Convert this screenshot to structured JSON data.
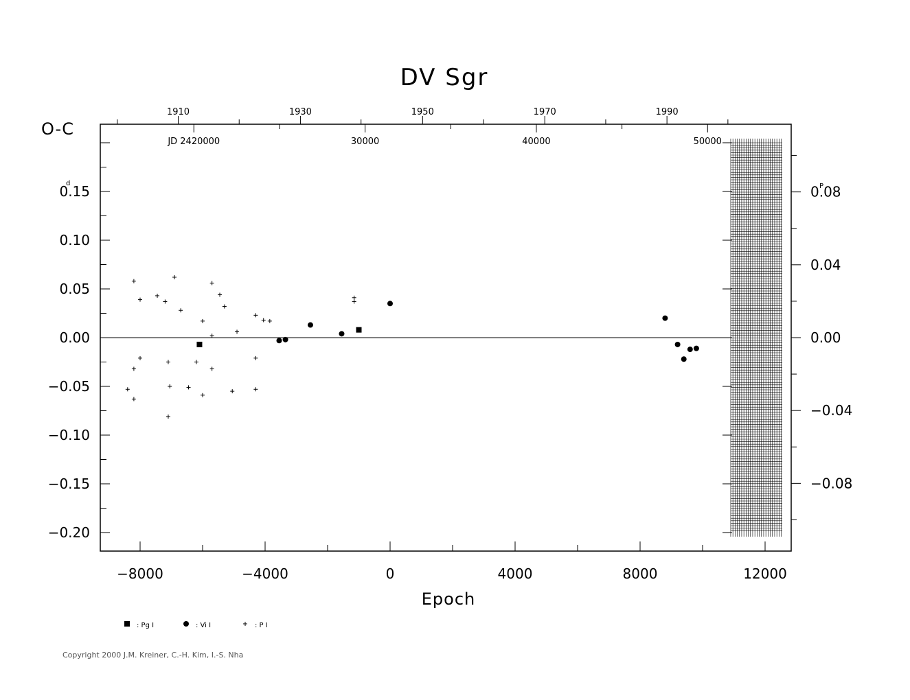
{
  "copyright": "Copyright 2000 J.M. Kreiner, C.-H. Kim, I.-S. Nha",
  "chart_data": {
    "type": "scatter",
    "title": "DV Sgr",
    "xlabel": "Epoch",
    "ylabel": "O-C",
    "y_unit_left": "d",
    "y_unit_right": "P",
    "xlim": [
      -9200,
      12800
    ],
    "ylim": [
      -0.22,
      0.22
    ],
    "x_ticks": [
      -8000,
      -4000,
      0,
      4000,
      8000,
      12000
    ],
    "x_tick_labels": [
      "−8000",
      "−4000",
      "0",
      "4000",
      "8000",
      "12000"
    ],
    "y_ticks_left": [
      -0.2,
      -0.15,
      -0.1,
      -0.05,
      0.0,
      0.05,
      0.1,
      0.15
    ],
    "y_tick_labels_left": [
      "−0.20",
      "−0.15",
      "−0.10",
      "−0.05",
      "0.00",
      "0.05",
      "0.10",
      "0.15"
    ],
    "right_axis_factor": 0.535,
    "y_ticks_right": [
      -0.08,
      -0.04,
      0.0,
      0.04,
      0.08
    ],
    "y_tick_labels_right": [
      "−0.08",
      "−0.04",
      "0.00",
      "0.04",
      "0.08"
    ],
    "top_year_ticks": [
      1910,
      1930,
      1950,
      1970,
      1990
    ],
    "top_year_epochs": [
      -6780,
      -2870,
      1040,
      4950,
      8860
    ],
    "top_year_minor_epochs": [
      -8730,
      -4830,
      -930,
      2990,
      6900,
      10810
    ],
    "jd_ticks": [
      20000,
      30000,
      40000,
      50000
    ],
    "jd_tick_labels": [
      "JD 2420000",
      "30000",
      "40000",
      "50000"
    ],
    "jd_tick_epochs": [
      -6280,
      -800,
      4680,
      10160
    ],
    "jd_minor_epochs": [
      -3540,
      1940,
      7420
    ],
    "hatch_region": {
      "x_from": 10900,
      "x_to": 12550,
      "y_from": -0.2,
      "y_to": 0.2
    },
    "zero_line": true,
    "legend": [
      {
        "marker": "square",
        "label": ": Pg I"
      },
      {
        "marker": "circle",
        "label": ": Vi I"
      },
      {
        "marker": "plus",
        "label": ": P I"
      }
    ],
    "series": [
      {
        "name": "Pg I",
        "marker": "square",
        "points": [
          [
            -6100,
            -0.007
          ],
          [
            -1000,
            0.008
          ]
        ]
      },
      {
        "name": "Vi I",
        "marker": "circle",
        "points": [
          [
            -3550,
            -0.003
          ],
          [
            -3350,
            -0.002
          ],
          [
            -2550,
            0.013
          ],
          [
            -1550,
            0.004
          ],
          [
            0,
            0.035
          ],
          [
            8800,
            0.02
          ],
          [
            9200,
            -0.007
          ],
          [
            9400,
            -0.022
          ],
          [
            9600,
            -0.012
          ],
          [
            9800,
            -0.011
          ]
        ]
      },
      {
        "name": "P I",
        "marker": "plus",
        "points": [
          [
            -8200,
            0.058
          ],
          [
            -8000,
            0.039
          ],
          [
            -7450,
            0.043
          ],
          [
            -7200,
            0.037
          ],
          [
            -6900,
            0.062
          ],
          [
            -6700,
            0.028
          ],
          [
            -6000,
            0.017
          ],
          [
            -5700,
            0.056
          ],
          [
            -5450,
            0.044
          ],
          [
            -5300,
            0.032
          ],
          [
            -4900,
            0.006
          ],
          [
            -4300,
            0.023
          ],
          [
            -4050,
            0.018
          ],
          [
            -3850,
            0.017
          ],
          [
            -5700,
            0.002
          ],
          [
            -8000,
            -0.021
          ],
          [
            -8200,
            -0.032
          ],
          [
            -7100,
            -0.025
          ],
          [
            -6200,
            -0.025
          ],
          [
            -5700,
            -0.032
          ],
          [
            -4300,
            -0.021
          ],
          [
            -8400,
            -0.053
          ],
          [
            -8200,
            -0.063
          ],
          [
            -7050,
            -0.05
          ],
          [
            -6450,
            -0.051
          ],
          [
            -6000,
            -0.059
          ],
          [
            -5050,
            -0.055
          ],
          [
            -4300,
            -0.053
          ],
          [
            -7100,
            -0.081
          ],
          [
            -1150,
            0.037
          ],
          [
            -1150,
            0.041
          ]
        ]
      }
    ]
  }
}
